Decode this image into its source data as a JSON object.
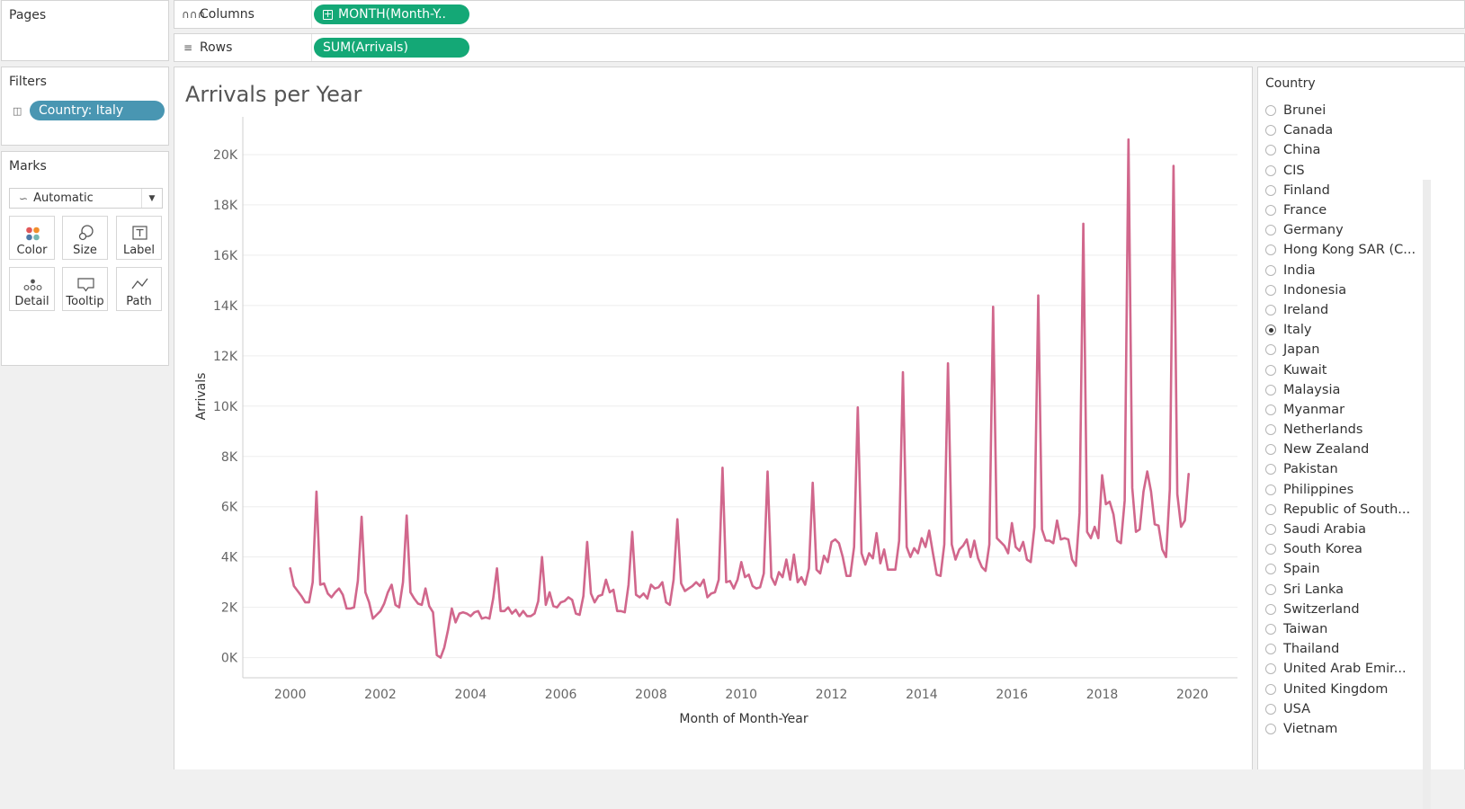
{
  "pages": {
    "title": "Pages"
  },
  "columns_shelf": {
    "label": "Columns",
    "pill": "MONTH(Month-Y.."
  },
  "rows_shelf": {
    "label": "Rows",
    "pill": "SUM(Arrivals)"
  },
  "filters": {
    "title": "Filters",
    "pill": "Country: Italy"
  },
  "marks": {
    "title": "Marks",
    "mark_type": "Automatic",
    "buttons": [
      "Color",
      "Size",
      "Label",
      "Detail",
      "Tooltip",
      "Path"
    ]
  },
  "country_filter": {
    "title": "Country",
    "selected": "Italy",
    "items": [
      "Brunei",
      "Canada",
      "China",
      "CIS",
      "Finland",
      "France",
      "Germany",
      "Hong Kong SAR (C...",
      "India",
      "Indonesia",
      "Ireland",
      "Italy",
      "Japan",
      "Kuwait",
      "Malaysia",
      "Myanmar",
      "Netherlands",
      "New Zealand",
      "Pakistan",
      "Philippines",
      "Republic of South...",
      "Saudi Arabia",
      "South Korea",
      "Spain",
      "Sri Lanka",
      "Switzerland",
      "Taiwan",
      "Thailand",
      "United Arab Emir...",
      "United Kingdom",
      "USA",
      "Vietnam"
    ]
  },
  "colors": {
    "line": "#d1678c",
    "pill_green": "#14a876",
    "pill_blue": "#4996b2"
  },
  "chart_data": {
    "type": "line",
    "title": "Arrivals per Year",
    "xlabel": "Month of Month-Year",
    "ylabel": "Arrivals",
    "xlim": [
      1998.95,
      2021.0
    ],
    "ylim": [
      -800,
      21500
    ],
    "x_ticks": [
      2000,
      2002,
      2004,
      2006,
      2008,
      2010,
      2012,
      2014,
      2016,
      2018,
      2020
    ],
    "y_ticks": [
      0,
      2000,
      4000,
      6000,
      8000,
      10000,
      12000,
      14000,
      16000,
      18000,
      20000
    ],
    "y_tick_labels": [
      "0K",
      "2K",
      "4K",
      "6K",
      "8K",
      "10K",
      "12K",
      "14K",
      "16K",
      "18K",
      "20K"
    ],
    "series": [
      {
        "start": "2000-01",
        "values": [
          3550,
          2850,
          2650,
          2450,
          2200,
          2200,
          3000,
          6600,
          2900,
          2950,
          2550,
          2400,
          2600,
          2750,
          2500,
          1950,
          1950,
          2000,
          3050,
          5600,
          2600,
          2200,
          1550,
          1700,
          1850,
          2150,
          2600,
          2900,
          2100,
          2000,
          3000,
          5650,
          2600,
          2350,
          2150,
          2100,
          2750,
          2050,
          1800,
          100,
          0,
          400,
          1100,
          1950,
          1400,
          1750,
          1800,
          1750,
          1650,
          1800,
          1850,
          1550,
          1600,
          1550,
          2350,
          3550,
          1850,
          1850,
          2000,
          1750,
          1900,
          1650,
          1850,
          1650,
          1650,
          1750,
          2250,
          4000,
          2100,
          2600,
          2050,
          2000,
          2200,
          2250,
          2400,
          2300,
          1750,
          1700,
          2450,
          4600,
          2550,
          2200,
          2450,
          2500,
          3100,
          2600,
          2700,
          1850,
          1850,
          1800,
          2900,
          5000,
          2500,
          2400,
          2550,
          2350,
          2900,
          2750,
          2800,
          3000,
          2200,
          2100,
          3100,
          5500,
          2950,
          2650,
          2750,
          2850,
          3000,
          2850,
          3100,
          2400,
          2550,
          2600,
          3100,
          7550,
          3000,
          3050,
          2750,
          3100,
          3800,
          3200,
          3300,
          2850,
          2750,
          2800,
          3350,
          7400,
          3200,
          2900,
          3400,
          3200,
          3900,
          3100,
          4100,
          3000,
          3200,
          2900,
          3550,
          6950,
          3500,
          3350,
          4050,
          3800,
          4600,
          4700,
          4550,
          4000,
          3250,
          3250,
          4400,
          9950,
          4150,
          3700,
          4150,
          3950,
          4950,
          3750,
          4300,
          3500,
          3500,
          3500,
          4650,
          11350,
          4400,
          4000,
          4350,
          4150,
          4750,
          4400,
          5050,
          4150,
          3300,
          3250,
          4500,
          11700,
          4500,
          3900,
          4300,
          4450,
          4700,
          4000,
          4650,
          3950,
          3600,
          3450,
          4500,
          13950,
          4750,
          4600,
          4450,
          4150,
          5350,
          4400,
          4250,
          4600,
          3900,
          3800,
          5200,
          14400,
          5100,
          4650,
          4650,
          4550,
          5450,
          4700,
          4750,
          4700,
          3900,
          3650,
          5750,
          17250,
          5000,
          4750,
          5200,
          4750,
          7250,
          6100,
          6200,
          5700,
          4650,
          4550,
          6250,
          20600,
          6750,
          5000,
          5100,
          6600,
          7400,
          6600,
          5300,
          5250,
          4300,
          4000,
          6700,
          19550,
          6500,
          5200,
          5450,
          7300
        ]
      }
    ]
  }
}
